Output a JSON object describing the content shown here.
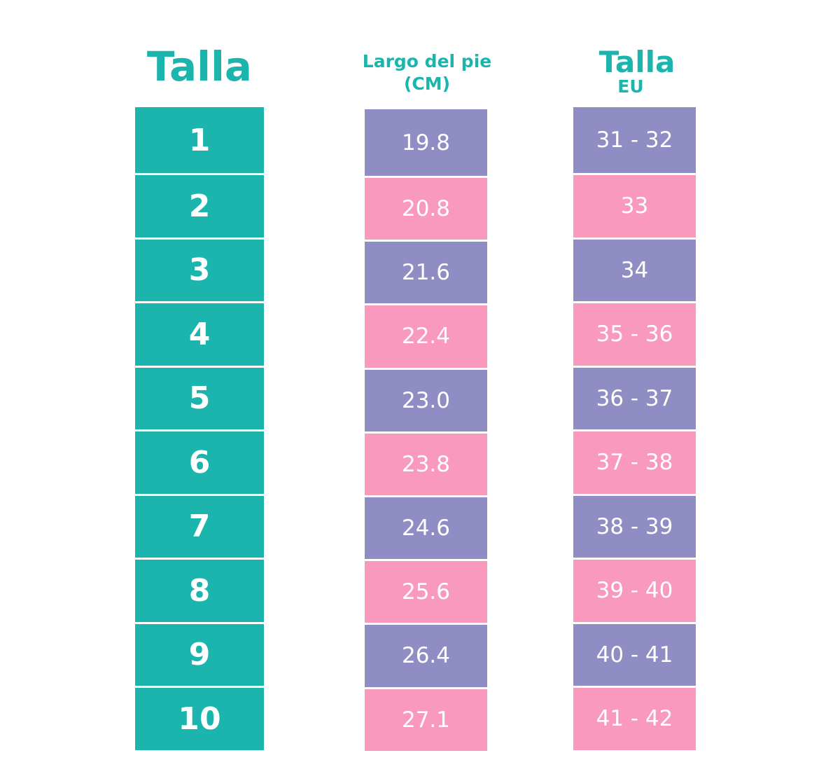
{
  "headers": {
    "talla": "Talla",
    "largo_line1": "Largo del pie",
    "largo_line2": "(CM)",
    "eu_line1": "Talla",
    "eu_line2": "EU"
  },
  "colors": {
    "teal": "#1bb5ad",
    "purple": "#8f8dc3",
    "pink": "#f899bd"
  },
  "rows": [
    {
      "talla": "1",
      "largo": "19.8",
      "eu": "31 - 32"
    },
    {
      "talla": "2",
      "largo": "20.8",
      "eu": "33"
    },
    {
      "talla": "3",
      "largo": "21.6",
      "eu": "34"
    },
    {
      "talla": "4",
      "largo": "22.4",
      "eu": "35 - 36"
    },
    {
      "talla": "5",
      "largo": "23.0",
      "eu": "36 - 37"
    },
    {
      "talla": "6",
      "largo": "23.8",
      "eu": "37 - 38"
    },
    {
      "talla": "7",
      "largo": "24.6",
      "eu": "38 - 39"
    },
    {
      "talla": "8",
      "largo": "25.6",
      "eu": "39 - 40"
    },
    {
      "talla": "9",
      "largo": "26.4",
      "eu": "40 - 41"
    },
    {
      "talla": "10",
      "largo": "27.1",
      "eu": "41 - 42"
    }
  ]
}
